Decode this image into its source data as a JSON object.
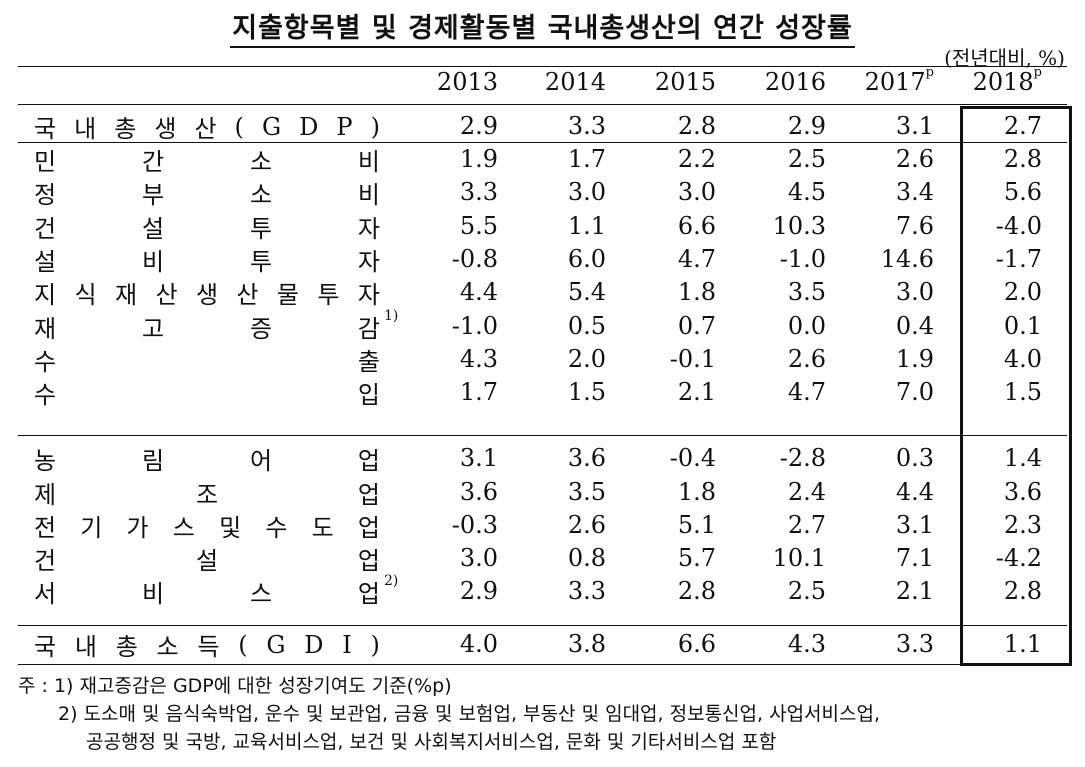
{
  "title": "지출항목별 및 경제활동별 국내총생산의 연간 성장률",
  "unit": "(전년대비, %)",
  "columns": [
    {
      "year": "2013",
      "sup": ""
    },
    {
      "year": "2014",
      "sup": ""
    },
    {
      "year": "2015",
      "sup": ""
    },
    {
      "year": "2016",
      "sup": ""
    },
    {
      "year": "2017",
      "sup": "p"
    },
    {
      "year": "2018",
      "sup": "p"
    }
  ],
  "rows": [
    {
      "label": "국내총생산(GDP)",
      "note": "",
      "values": [
        "2.9",
        "3.3",
        "2.8",
        "2.9",
        "3.1",
        "2.7"
      ]
    },
    {
      "label": "민간소비",
      "note": "",
      "values": [
        "1.9",
        "1.7",
        "2.2",
        "2.5",
        "2.6",
        "2.8"
      ]
    },
    {
      "label": "정부소비",
      "note": "",
      "values": [
        "3.3",
        "3.0",
        "3.0",
        "4.5",
        "3.4",
        "5.6"
      ]
    },
    {
      "label": "건설투자",
      "note": "",
      "values": [
        "5.5",
        "1.1",
        "6.6",
        "10.3",
        "7.6",
        "-4.0"
      ]
    },
    {
      "label": "설비투자",
      "note": "",
      "values": [
        "-0.8",
        "6.0",
        "4.7",
        "-1.0",
        "14.6",
        "-1.7"
      ]
    },
    {
      "label": "지식재산생산물투자",
      "note": "",
      "values": [
        "4.4",
        "5.4",
        "1.8",
        "3.5",
        "3.0",
        "2.0"
      ]
    },
    {
      "label": "재고증감",
      "note": "1)",
      "values": [
        "-1.0",
        "0.5",
        "0.7",
        "0.0",
        "0.4",
        "0.1"
      ]
    },
    {
      "label": "수출",
      "note": "",
      "values": [
        "4.3",
        "2.0",
        "-0.1",
        "2.6",
        "1.9",
        "4.0"
      ]
    },
    {
      "label": "수입",
      "note": "",
      "values": [
        "1.7",
        "1.5",
        "2.1",
        "4.7",
        "7.0",
        "1.5"
      ]
    },
    {
      "label": "농림어업",
      "note": "",
      "values": [
        "3.1",
        "3.6",
        "-0.4",
        "-2.8",
        "0.3",
        "1.4"
      ]
    },
    {
      "label": "제조업",
      "note": "",
      "values": [
        "3.6",
        "3.5",
        "1.8",
        "2.4",
        "4.4",
        "3.6"
      ]
    },
    {
      "label": "전기가스및수도업",
      "note": "",
      "values": [
        "-0.3",
        "2.6",
        "5.1",
        "2.7",
        "3.1",
        "2.3"
      ]
    },
    {
      "label": "건설업",
      "note": "",
      "values": [
        "3.0",
        "0.8",
        "5.7",
        "10.1",
        "7.1",
        "-4.2"
      ]
    },
    {
      "label": "서비스업",
      "note": "2)",
      "values": [
        "2.9",
        "3.3",
        "2.8",
        "2.5",
        "2.1",
        "2.8"
      ]
    },
    {
      "label": "국내총소득(GDI)",
      "note": "",
      "values": [
        "4.0",
        "3.8",
        "6.6",
        "4.3",
        "3.3",
        "1.1"
      ]
    }
  ],
  "notes": [
    "주 : 1)  재고증감은 GDP에 대한 성장기여도 기준(%p)",
    "2)  도소매 및 음식숙박업, 운수 및 보관업, 금융 및 보험업, 부동산 및 임대업, 정보통신업, 사업서비스업,",
    "공공행정 및 국방, 교육서비스업, 보건 및 사회복지서비스업, 문화 및 기타서비스업 포함"
  ]
}
